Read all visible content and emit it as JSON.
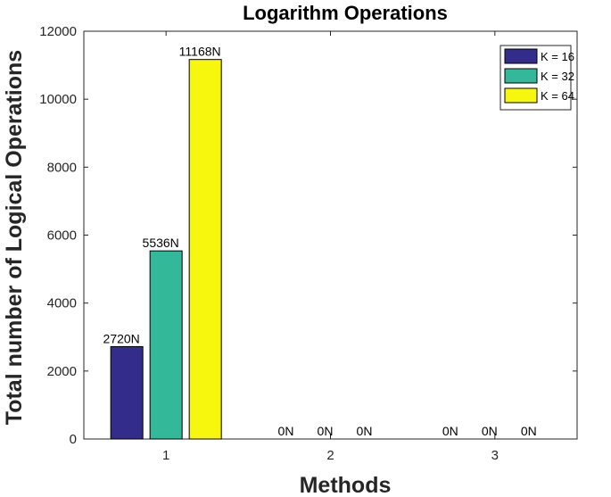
{
  "chart_data": {
    "type": "bar",
    "title": "Logarithm Operations",
    "xlabel": "Methods",
    "ylabel": "Total number of Logical Operations",
    "categories": [
      "1",
      "2",
      "3"
    ],
    "ylim": [
      0,
      12000
    ],
    "yticks": [
      0,
      2000,
      4000,
      6000,
      8000,
      10000,
      12000
    ],
    "ytick_labels": [
      "0",
      "2000",
      "4000",
      "6000",
      "8000",
      "10000",
      "12000"
    ],
    "grid": false,
    "legend_position": "top-right",
    "series": [
      {
        "name": "K = 16",
        "values": [
          2720,
          0,
          0
        ],
        "labels": [
          "2720N",
          "0N",
          "0N"
        ],
        "color": "#332c8b"
      },
      {
        "name": "K = 32",
        "values": [
          5536,
          0,
          0
        ],
        "labels": [
          "5536N",
          "0N",
          "0N"
        ],
        "color": "#33b89a"
      },
      {
        "name": "K = 64",
        "values": [
          11168,
          0,
          0
        ],
        "labels": [
          "11168N",
          "0N",
          "0N"
        ],
        "color": "#f7f70d"
      }
    ]
  }
}
